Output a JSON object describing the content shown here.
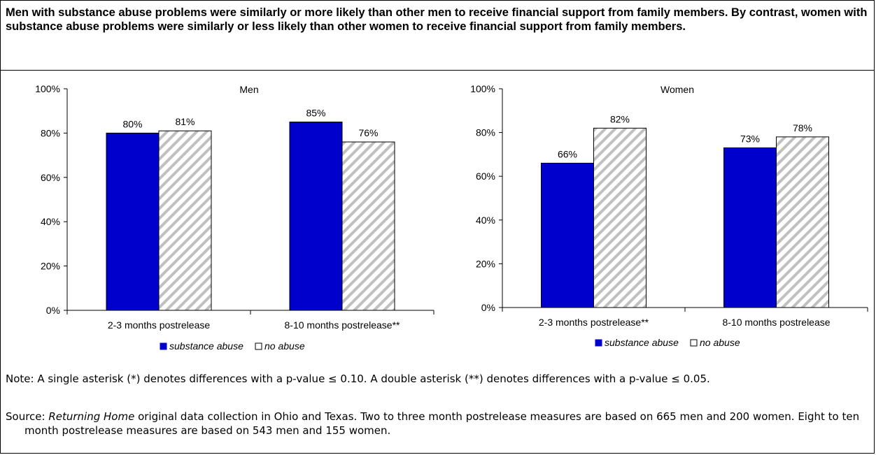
{
  "title": "Men with substance abuse problems were similarly or more likely than other men to receive financial support from family members.  By contrast, women with substance abuse problems were similarly or less likely than other women to receive financial support from family members.",
  "chart_data": [
    {
      "type": "bar",
      "title": "Men",
      "categories": [
        "2-3 months postrelease",
        "8-10 months postrelease**"
      ],
      "series": [
        {
          "name": "substance abuse",
          "values": [
            80,
            85
          ],
          "labels": [
            "80%",
            "85%"
          ],
          "color": "#0000cc",
          "pattern": "solid"
        },
        {
          "name": "no abuse",
          "values": [
            81,
            76
          ],
          "labels": [
            "81%",
            "76%"
          ],
          "color": "#c0c0c0",
          "pattern": "diagonal-hatch"
        }
      ],
      "ylim": [
        0,
        100
      ],
      "yticks": [
        "0%",
        "20%",
        "40%",
        "60%",
        "80%",
        "100%"
      ],
      "legend": "bottom",
      "grid": false
    },
    {
      "type": "bar",
      "title": "Women",
      "categories": [
        "2-3 months postrelease**",
        "8-10 months postrelease"
      ],
      "series": [
        {
          "name": "substance abuse",
          "values": [
            66,
            73
          ],
          "labels": [
            "66%",
            "73%"
          ],
          "color": "#0000cc",
          "pattern": "solid"
        },
        {
          "name": "no abuse",
          "values": [
            82,
            78
          ],
          "labels": [
            "82%",
            "78%"
          ],
          "color": "#c0c0c0",
          "pattern": "diagonal-hatch"
        }
      ],
      "ylim": [
        0,
        100
      ],
      "yticks": [
        "0%",
        "20%",
        "40%",
        "60%",
        "80%",
        "100%"
      ],
      "legend": "bottom",
      "grid": false
    }
  ],
  "note": "Note: A single asterisk (*) denotes differences with a p-value ≤ 0.10.  A double asterisk (**) denotes differences with a p-value ≤ 0.05.",
  "source": {
    "prefix": "Source: ",
    "italic": "Returning Home",
    "rest": " original data collection in Ohio and Texas. Two to three month postrelease measures are based on 665 men and 200 women.  Eight to ten month postrelease measures are based on 543 men and 155 women."
  }
}
